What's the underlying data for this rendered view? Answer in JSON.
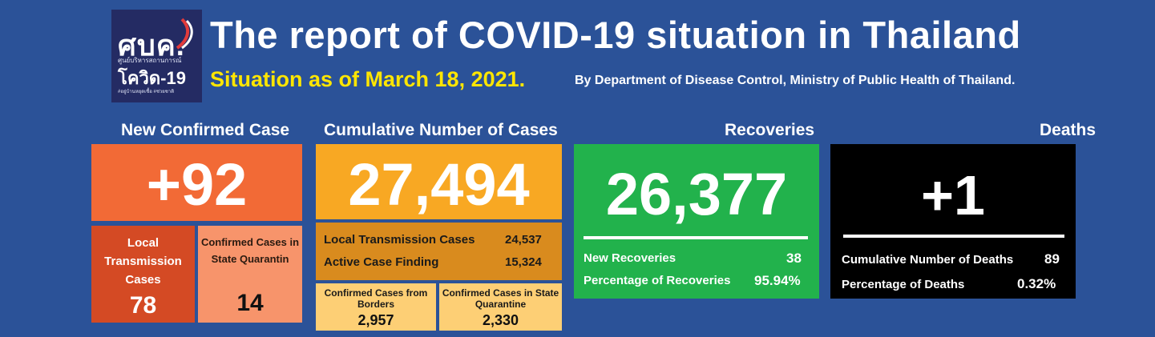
{
  "logo": {
    "title": "ศบค.",
    "subtitle": "ศูนย์บริหารสถานการณ์",
    "name": "โควิด-19",
    "tagline": "#อยู่บ้านหยุดเชื้อ #ช่วยชาติ"
  },
  "header": {
    "title": "The report of COVID-19 situation in Thailand",
    "situation": "Situation as of March 18, 2021.",
    "byline": "By Department of Disease Control, Ministry of Public Health of Thailand."
  },
  "new_confirmed": {
    "heading": "New Confirmed Case",
    "value": "+92",
    "local_label": "Local Transmission Cases",
    "local_value": "78",
    "quarantine_label": "Confirmed Cases in State Quarantin",
    "quarantine_value": "14"
  },
  "cumulative": {
    "heading": "Cumulative Number of Cases",
    "value": "27,494",
    "local_label": "Local Transmission Cases",
    "local_value": "24,537",
    "active_label": "Active Case Finding",
    "active_value": "15,324",
    "borders_label": "Confirmed Cases from Borders",
    "borders_value": "2,957",
    "quarantine_label": "Confirmed Cases in State Quarantine",
    "quarantine_value": "2,330"
  },
  "recoveries": {
    "heading": "Recoveries",
    "value": "26,377",
    "new_label": "New Recoveries",
    "new_value": "38",
    "pct_label": "Percentage of Recoveries",
    "pct_value": "95.94%"
  },
  "deaths": {
    "heading": "Deaths",
    "value": "+1",
    "cum_label": "Cumulative Number of Deaths",
    "cum_value": "89",
    "pct_label": "Percentage of Deaths",
    "pct_value": "0.32%"
  },
  "colors": {
    "background": "#2b5298",
    "new_case": "#f26a36",
    "local": "#d44a24",
    "quarantine": "#f7946b",
    "cumulative": "#f8a823",
    "cum_sub": "#d98b1e",
    "cum_light": "#fdcf75",
    "recoveries": "#22b24c",
    "deaths": "#000000",
    "highlight": "#ffe600"
  }
}
